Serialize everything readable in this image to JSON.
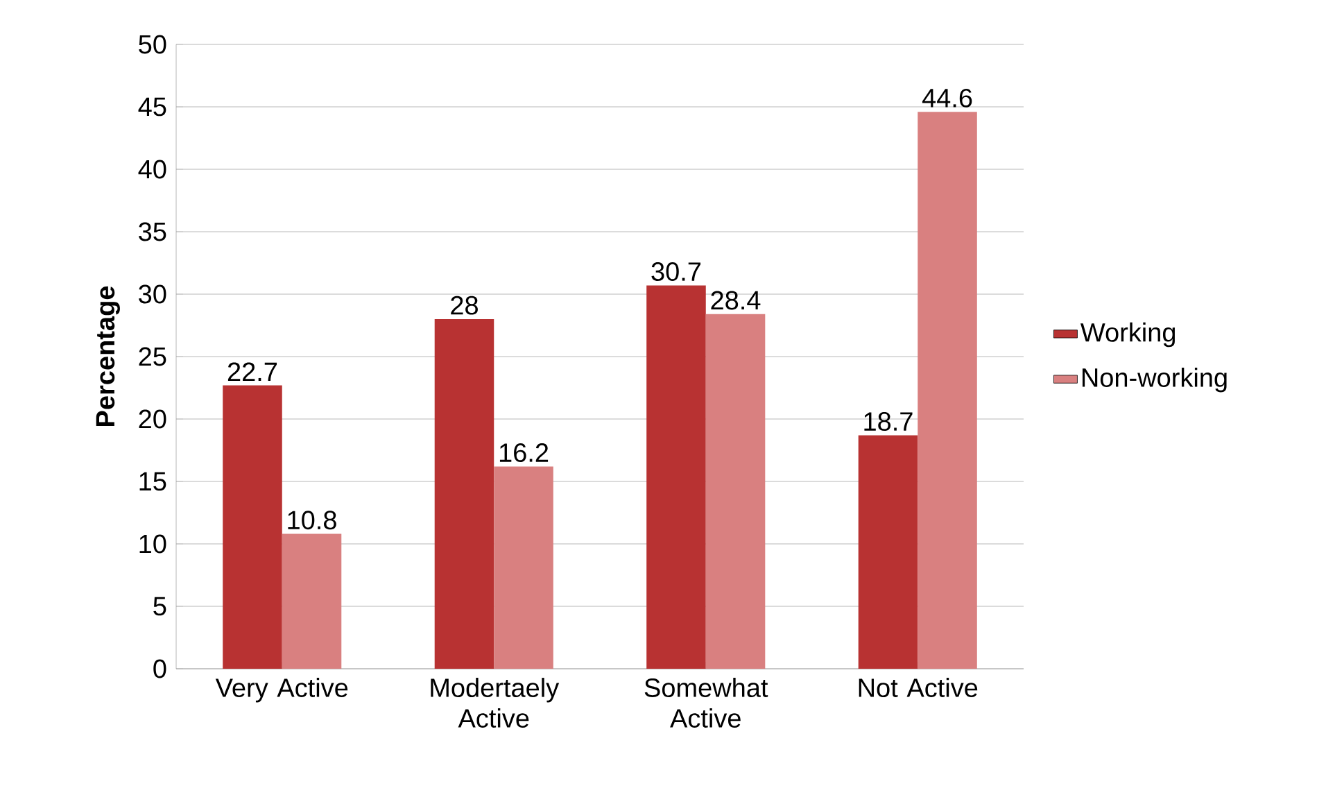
{
  "chart_data": {
    "type": "bar",
    "ylabel": "Percentage",
    "categories": [
      "Very Active",
      "Modertaely Active",
      "Somewhat Active",
      "Not Active"
    ],
    "series": [
      {
        "name": "Working",
        "color": "#b83232",
        "values": [
          22.7,
          28,
          30.7,
          18.7
        ]
      },
      {
        "name": "Non-working",
        "color": "#d98080",
        "values": [
          10.8,
          16.2,
          28.4,
          44.6
        ]
      }
    ],
    "ylim": [
      0,
      50
    ],
    "yticks": [
      0,
      5,
      10,
      15,
      20,
      25,
      30,
      35,
      40,
      45,
      50
    ],
    "grid": "y",
    "legend": "right",
    "data_labels": true
  }
}
